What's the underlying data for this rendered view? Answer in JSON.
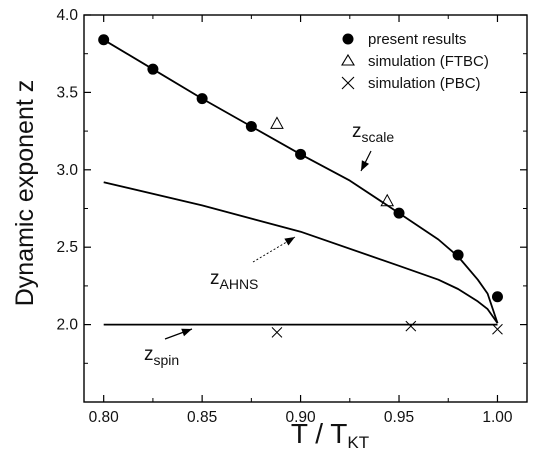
{
  "chart_data": {
    "type": "scatter",
    "xlabel": {
      "main": "T / T",
      "sub": "KT"
    },
    "ylabel": "Dynamic exponent z",
    "xlim": [
      0.79,
      1.015
    ],
    "ylim": [
      1.5,
      4.0
    ],
    "xticks": [
      "0.80",
      "0.85",
      "0.90",
      "0.95",
      "1.00"
    ],
    "yticks": [
      "2.0",
      "2.5",
      "3.0",
      "3.5",
      "4.0"
    ],
    "grid": false,
    "legend_position": "top-right",
    "series": [
      {
        "name": "present results",
        "marker": "filled-circle",
        "x": [
          0.8,
          0.825,
          0.85,
          0.875,
          0.9,
          0.95,
          0.98,
          1.0
        ],
        "y": [
          3.84,
          3.65,
          3.46,
          3.28,
          3.1,
          2.72,
          2.45,
          2.18
        ]
      },
      {
        "name": "simulation (FTBC)",
        "marker": "open-triangle",
        "x": [
          0.888,
          0.944
        ],
        "y": [
          3.3,
          2.8
        ]
      },
      {
        "name": "simulation (PBC)",
        "marker": "cross",
        "x": [
          0.888,
          0.956,
          1.0
        ],
        "y": [
          1.95,
          1.99,
          1.97
        ]
      }
    ],
    "curves": [
      {
        "label": {
          "main": "z",
          "sub": "scale"
        },
        "x": [
          0.8,
          0.825,
          0.85,
          0.875,
          0.9,
          0.925,
          0.95,
          0.97,
          0.98,
          0.99,
          0.995,
          1.0
        ],
        "y": [
          3.84,
          3.65,
          3.46,
          3.28,
          3.1,
          2.93,
          2.72,
          2.55,
          2.44,
          2.29,
          2.2,
          2.01
        ]
      },
      {
        "label": {
          "main": "z",
          "sub": "AHNS"
        },
        "x": [
          0.8,
          0.85,
          0.9,
          0.95,
          0.97,
          0.98,
          0.99,
          0.995,
          1.0
        ],
        "y": [
          2.92,
          2.77,
          2.6,
          2.38,
          2.29,
          2.23,
          2.15,
          2.1,
          2.01
        ]
      },
      {
        "label": {
          "main": "z",
          "sub": "spin"
        },
        "x": [
          0.8,
          1.0
        ],
        "y": [
          2.0,
          2.0
        ]
      }
    ]
  }
}
